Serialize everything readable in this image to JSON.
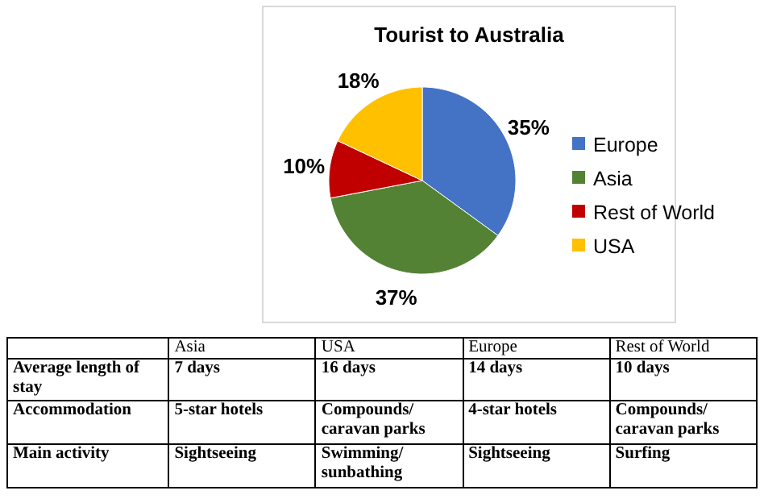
{
  "chart_data": [
    {
      "type": "pie",
      "title": "Tourist to Australia",
      "categories": [
        "Europe",
        "Asia",
        "Rest of World",
        "USA"
      ],
      "values": [
        35,
        37,
        10,
        18
      ],
      "colors": [
        "#4472c4",
        "#548235",
        "#c00000",
        "#ffc000"
      ],
      "value_labels": [
        "35%",
        "37%",
        "10%",
        "18%"
      ],
      "legend": "right"
    },
    {
      "type": "other",
      "categories": [
        "Asia",
        "USA",
        "Europe",
        "Rest of World"
      ],
      "y_categories": [
        "Average length of stay",
        "Accommodation",
        "Main activity"
      ],
      "cell_labels": [
        [
          "7 days",
          "16 days",
          "14 days",
          "10 days"
        ],
        [
          "5-star hotels",
          "Compounds/ caravan parks",
          "4-star hotels",
          "Compounds/ caravan parks"
        ],
        [
          "Sightseeing",
          "Swimming/ sunbathing",
          "Sightseeing",
          "Surfing"
        ]
      ]
    }
  ]
}
